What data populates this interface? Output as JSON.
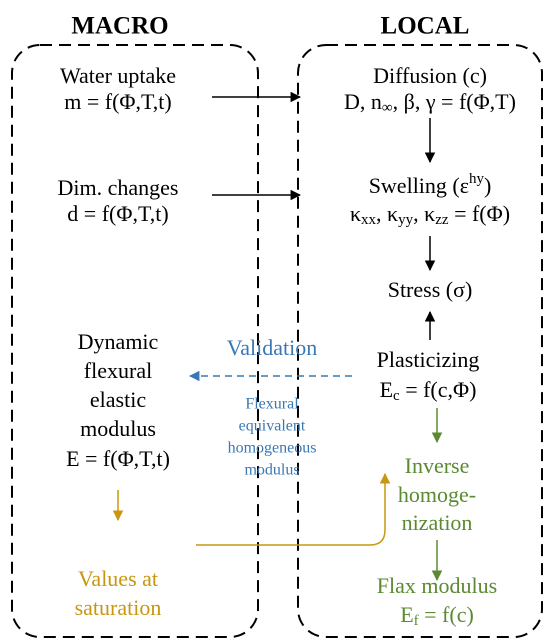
{
  "macro": {
    "title": "MACRO",
    "items": [
      {
        "lines": [
          "Water uptake",
          "m = f(Φ,T,t)"
        ]
      },
      {
        "lines": [
          "Dim. changes",
          "d = f(Φ,T,t)"
        ]
      },
      {
        "lines": [
          "Dynamic",
          "flexural",
          "elastic",
          "modulus",
          "E = f(Φ,T,t)"
        ]
      },
      {
        "lines": [
          "Values at",
          "saturation"
        ]
      }
    ]
  },
  "local": {
    "title": "LOCAL",
    "items": [
      {
        "lines": [
          "Diffusion (c)",
          [
            "D, n",
            {
              "sub": "∞"
            },
            ", β, γ = f(Φ,T)"
          ]
        ]
      },
      {
        "lines": [
          [
            "Swelling (ε",
            {
              "sup": "hy"
            },
            ")"
          ],
          [
            "κ",
            {
              "sub": "xx"
            },
            ", κ",
            {
              "sub": "yy"
            },
            ", κ",
            {
              "sub": "zz"
            },
            " = f(Φ)"
          ]
        ]
      },
      {
        "lines": [
          "Stress (σ)"
        ]
      },
      {
        "lines": [
          "Plasticizing",
          [
            "E",
            {
              "sub": "c"
            },
            " = f(c,Φ)"
          ]
        ]
      },
      {
        "lines": [
          "Inverse",
          "homoge-",
          "nization"
        ]
      },
      {
        "lines": [
          "Flax modulus",
          [
            "E",
            {
              "sub": "f"
            },
            " = f(c)"
          ]
        ]
      }
    ]
  },
  "validation": {
    "label": "Validation",
    "note": [
      "Flexural",
      "equivalent",
      "homogeneous",
      "modulus"
    ]
  }
}
